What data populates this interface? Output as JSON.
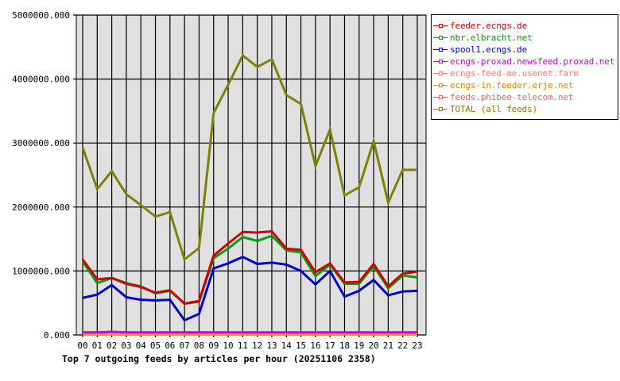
{
  "chart_data": {
    "type": "line",
    "title": "Top 7 outgoing feeds by articles per hour (20251106 2358)",
    "categories": [
      "00",
      "01",
      "02",
      "03",
      "04",
      "05",
      "06",
      "07",
      "08",
      "09",
      "10",
      "11",
      "12",
      "13",
      "14",
      "15",
      "16",
      "17",
      "18",
      "19",
      "20",
      "21",
      "22",
      "23"
    ],
    "ylim": [
      0,
      5000000
    ],
    "yticks": [
      "0.000",
      "1000000.000",
      "2000000.000",
      "3000000.000",
      "4000000.000",
      "5000000.000"
    ],
    "grid": true,
    "legend_position": "right",
    "series": [
      {
        "name": "feeder.ecngs.de",
        "color": "#cc0000",
        "values": [
          1180000,
          870000,
          890000,
          800000,
          750000,
          660000,
          700000,
          490000,
          530000,
          1240000,
          1430000,
          1610000,
          1600000,
          1620000,
          1350000,
          1330000,
          980000,
          1120000,
          820000,
          830000,
          1110000,
          760000,
          960000,
          990000
        ]
      },
      {
        "name": "nbr.elbracht.net",
        "color": "#00a000",
        "values": [
          1150000,
          810000,
          890000,
          810000,
          760000,
          650000,
          690000,
          490000,
          520000,
          1200000,
          1350000,
          1530000,
          1470000,
          1550000,
          1320000,
          1290000,
          920000,
          1100000,
          800000,
          800000,
          1080000,
          730000,
          930000,
          900000
        ]
      },
      {
        "name": "spool1.ecngs.de",
        "color": "#0000cc",
        "values": [
          580000,
          630000,
          780000,
          590000,
          550000,
          540000,
          550000,
          230000,
          330000,
          1040000,
          1120000,
          1220000,
          1110000,
          1130000,
          1100000,
          1000000,
          790000,
          1000000,
          600000,
          690000,
          860000,
          620000,
          680000,
          690000
        ]
      },
      {
        "name": "ecngs-proxad.newsfeed.proxad.net",
        "color": "#cc00cc",
        "values": [
          40000,
          40000,
          50000,
          40000,
          40000,
          40000,
          40000,
          40000,
          40000,
          40000,
          40000,
          40000,
          40000,
          40000,
          40000,
          40000,
          40000,
          40000,
          40000,
          40000,
          40000,
          40000,
          40000,
          40000
        ]
      },
      {
        "name": "ecngs-feed-me.usenet.farm",
        "color": "#ff8080",
        "values": [
          20000,
          20000,
          20000,
          20000,
          20000,
          20000,
          20000,
          20000,
          20000,
          20000,
          20000,
          20000,
          20000,
          20000,
          20000,
          20000,
          20000,
          20000,
          20000,
          20000,
          20000,
          20000,
          20000,
          20000
        ]
      },
      {
        "name": "ecngs-in.feeder.erje.net",
        "color": "#ff8000",
        "values": [
          10000,
          10000,
          10000,
          10000,
          10000,
          10000,
          10000,
          10000,
          10000,
          10000,
          10000,
          10000,
          10000,
          10000,
          10000,
          10000,
          10000,
          10000,
          10000,
          10000,
          10000,
          10000,
          10000,
          10000
        ]
      },
      {
        "name": "feeds.phibee-telecom.net",
        "color": "#cc7070",
        "values": [
          20000,
          20000,
          20000,
          20000,
          20000,
          20000,
          20000,
          20000,
          20000,
          20000,
          20000,
          20000,
          20000,
          20000,
          20000,
          20000,
          20000,
          20000,
          20000,
          20000,
          20000,
          20000,
          20000,
          20000
        ]
      },
      {
        "name": "TOTAL (all feeds)",
        "color": "#808000",
        "values": [
          2930000,
          2280000,
          2560000,
          2200000,
          2030000,
          1850000,
          1920000,
          1180000,
          1360000,
          3470000,
          3910000,
          4370000,
          4190000,
          4310000,
          3750000,
          3610000,
          2640000,
          3210000,
          2180000,
          2310000,
          3030000,
          2070000,
          2580000,
          2580000
        ]
      }
    ]
  }
}
